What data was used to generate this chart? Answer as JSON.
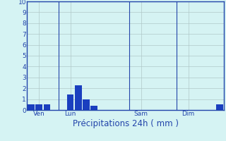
{
  "title": "",
  "xlabel": "Précipitations 24h ( mm )",
  "ylabel": "",
  "background_color": "#d5f3f3",
  "bar_color": "#1a3fbf",
  "grid_color": "#b0c8c8",
  "spine_color": "#2244aa",
  "ylim": [
    0,
    10
  ],
  "yticks": [
    0,
    1,
    2,
    3,
    4,
    5,
    6,
    7,
    8,
    9,
    10
  ],
  "day_labels": [
    "Ven",
    "Lun",
    "Sam",
    "Dim"
  ],
  "day_positions": [
    1,
    5,
    14,
    20
  ],
  "n_bars": 25,
  "bar_values": [
    0.5,
    0.5,
    0.5,
    0.0,
    0.0,
    1.4,
    2.3,
    1.0,
    0.4,
    0.0,
    0.0,
    0.0,
    0.0,
    0.0,
    0.0,
    0.0,
    0.0,
    0.0,
    0.0,
    0.0,
    0.0,
    0.0,
    0.0,
    0.0,
    0.5
  ],
  "vline_positions": [
    3.5,
    12.5,
    18.5
  ],
  "tick_fontsize": 6.5,
  "label_fontsize": 8.5
}
